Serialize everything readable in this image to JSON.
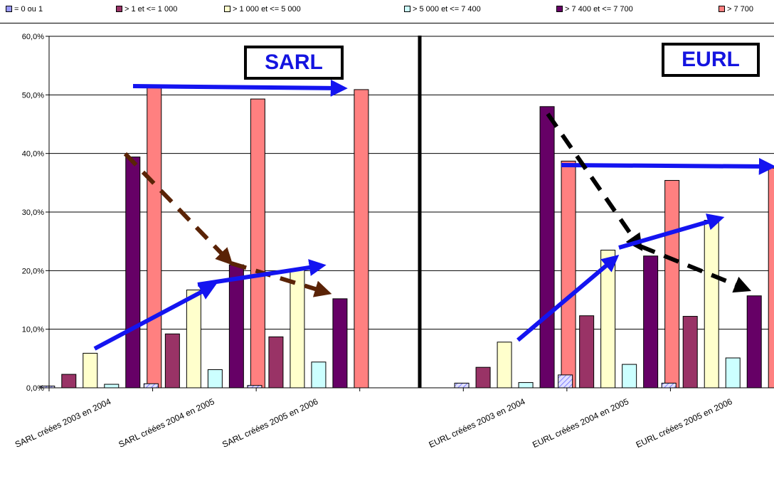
{
  "legend": [
    {
      "label": "= 0 ou 1",
      "color": "#9999ff"
    },
    {
      "label": "> 1 et <= 1 000",
      "color": "#993366"
    },
    {
      "label": "> 1 000 et <= 5 000",
      "color": "#ffffcc"
    },
    {
      "label": "> 5 000 et <= 7 400",
      "color": "#ccffff"
    },
    {
      "label": "> 7 400 et <= 7 700",
      "color": "#660066"
    },
    {
      "label": "> 7 700",
      "color": "#ff8080"
    }
  ],
  "boxes": {
    "sarl": "SARL",
    "eurl": "EURL"
  },
  "chart_data": {
    "type": "bar",
    "categories": [
      "SARL créées 2003 en 2004",
      "SARL créées 2004 en 2005",
      "SARL créées 2005 en 2006",
      "",
      "EURL créées 2003 en 2004",
      "EURL créées 2004 en 2005",
      "EURL créées 2005 en 2006"
    ],
    "series": [
      {
        "name": "= 0 ou 1",
        "color": "#ccccff",
        "values": [
          0.3,
          0.7,
          0.4,
          null,
          0.8,
          2.2,
          0.8
        ]
      },
      {
        "name": "> 1 et <= 1 000",
        "color": "#993366",
        "values": [
          2.3,
          9.2,
          8.7,
          null,
          3.5,
          12.3,
          12.2
        ]
      },
      {
        "name": "> 1 000 et <= 5 000",
        "color": "#ffffcc",
        "values": [
          5.9,
          16.7,
          20.2,
          null,
          7.8,
          23.5,
          28.6
        ]
      },
      {
        "name": "> 5 000 et <= 7 400",
        "color": "#ccffff",
        "values": [
          0.6,
          3.1,
          4.4,
          null,
          0.9,
          4.0,
          5.1
        ]
      },
      {
        "name": "> 7 400 et <= 7 700",
        "color": "#660066",
        "values": [
          39.4,
          21.0,
          15.2,
          null,
          48.0,
          22.5,
          15.7
        ]
      },
      {
        "name": "> 7 700",
        "color": "#ff8080",
        "values": [
          51.3,
          49.3,
          50.9,
          null,
          38.7,
          35.4,
          37.5
        ]
      }
    ],
    "ylim": [
      0,
      60
    ],
    "yticks": [
      "0,0%",
      "10,0%",
      "20,0%",
      "30,0%",
      "40,0%",
      "50,0%",
      "60,0%"
    ],
    "grid": true,
    "legend_position": "top"
  }
}
